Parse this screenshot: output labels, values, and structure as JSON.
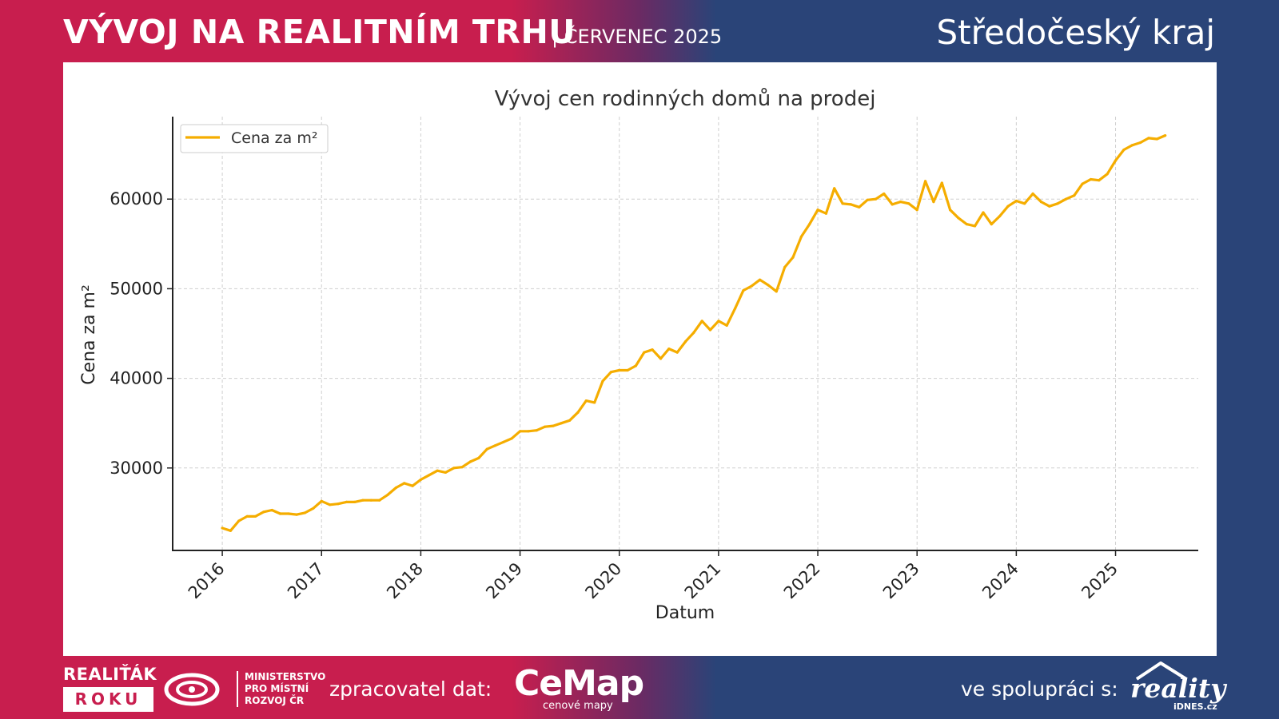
{
  "header": {
    "title": "VÝVOJ NA REALITNÍM TRHU",
    "subtitle": "| ČERVENEC 2025",
    "region": "Středočeský kraj"
  },
  "footer": {
    "realitak_top": "REALIŤÁK",
    "realitak_box": "ROKU",
    "ministry_lines": [
      "MINISTERSTVO",
      "PRO MÍSTNÍ",
      "ROZVOJ ČR"
    ],
    "zpracovatel_label": "zpracovatel dat:",
    "cemap_name": "CeMap",
    "cemap_sub": "cenové mapy",
    "spoluprace_label": "ve spolupráci s:",
    "reality_word": "reality",
    "reality_sub": "iDNES.cz"
  },
  "colors": {
    "line": "#f5ad00",
    "header_red": "#c81e4e",
    "header_blue": "#2a4478"
  },
  "chart_data": {
    "type": "line",
    "title": "Vývoj cen rodinných domů na prodej",
    "xlabel": "Datum",
    "ylabel": "Cena za m²",
    "legend": {
      "label": "Cena za m²",
      "placement": "top-left"
    },
    "grid": true,
    "xlim": [
      "2015-07",
      "2025-11"
    ],
    "ylim": [
      20800,
      69200
    ],
    "x_ticks": [
      "2016",
      "2017",
      "2018",
      "2019",
      "2020",
      "2021",
      "2022",
      "2023",
      "2024",
      "2025"
    ],
    "y_ticks": [
      30000,
      40000,
      50000,
      60000
    ],
    "series": [
      {
        "name": "Cena za m²",
        "x": [
          "2016-01",
          "2016-02",
          "2016-03",
          "2016-04",
          "2016-05",
          "2016-06",
          "2016-07",
          "2016-08",
          "2016-09",
          "2016-10",
          "2016-11",
          "2016-12",
          "2017-01",
          "2017-02",
          "2017-03",
          "2017-04",
          "2017-05",
          "2017-06",
          "2017-07",
          "2017-08",
          "2017-09",
          "2017-10",
          "2017-11",
          "2017-12",
          "2018-01",
          "2018-02",
          "2018-03",
          "2018-04",
          "2018-05",
          "2018-06",
          "2018-07",
          "2018-08",
          "2018-09",
          "2018-10",
          "2018-11",
          "2018-12",
          "2019-01",
          "2019-02",
          "2019-03",
          "2019-04",
          "2019-05",
          "2019-06",
          "2019-07",
          "2019-08",
          "2019-09",
          "2019-10",
          "2019-11",
          "2019-12",
          "2020-01",
          "2020-02",
          "2020-03",
          "2020-04",
          "2020-05",
          "2020-06",
          "2020-07",
          "2020-08",
          "2020-09",
          "2020-10",
          "2020-11",
          "2020-12",
          "2021-01",
          "2021-02",
          "2021-03",
          "2021-04",
          "2021-05",
          "2021-06",
          "2021-07",
          "2021-08",
          "2021-09",
          "2021-10",
          "2021-11",
          "2021-12",
          "2022-01",
          "2022-02",
          "2022-03",
          "2022-04",
          "2022-05",
          "2022-06",
          "2022-07",
          "2022-08",
          "2022-09",
          "2022-10",
          "2022-11",
          "2022-12",
          "2023-01",
          "2023-02",
          "2023-03",
          "2023-04",
          "2023-05",
          "2023-06",
          "2023-07",
          "2023-08",
          "2023-09",
          "2023-10",
          "2023-11",
          "2023-12",
          "2024-01",
          "2024-02",
          "2024-03",
          "2024-04",
          "2024-05",
          "2024-06",
          "2024-07",
          "2024-08",
          "2024-09",
          "2024-10",
          "2024-11",
          "2024-12",
          "2025-01",
          "2025-02",
          "2025-03",
          "2025-04",
          "2025-05",
          "2025-06",
          "2025-07"
        ],
        "values": [
          23300,
          23000,
          24100,
          24600,
          24600,
          25100,
          25300,
          24900,
          24900,
          24800,
          25000,
          25500,
          26300,
          25900,
          26000,
          26200,
          26200,
          26400,
          26400,
          26400,
          27000,
          27800,
          28300,
          28000,
          28700,
          29200,
          29700,
          29500,
          30000,
          30100,
          30700,
          31100,
          32100,
          32500,
          32900,
          33300,
          34100,
          34100,
          34200,
          34600,
          34700,
          35000,
          35300,
          36200,
          37500,
          37300,
          39700,
          40700,
          40900,
          40900,
          41400,
          42900,
          43200,
          42200,
          43300,
          42900,
          44100,
          45100,
          46400,
          45400,
          46400,
          45900,
          47800,
          49800,
          50300,
          51000,
          50400,
          49700,
          52400,
          53500,
          55800,
          57200,
          58800,
          58400,
          61200,
          59500,
          59400,
          59100,
          59900,
          60000,
          60600,
          59400,
          59700,
          59500,
          58800,
          62000,
          59700,
          61800,
          58800,
          57900,
          57200,
          57000,
          58500,
          57200,
          58100,
          59200,
          59800,
          59500,
          60600,
          59700,
          59200,
          59500,
          60000,
          60400,
          61700,
          62200,
          62100,
          62800,
          64300,
          65500,
          66000,
          66300,
          66800,
          66700,
          67100
        ]
      }
    ]
  }
}
